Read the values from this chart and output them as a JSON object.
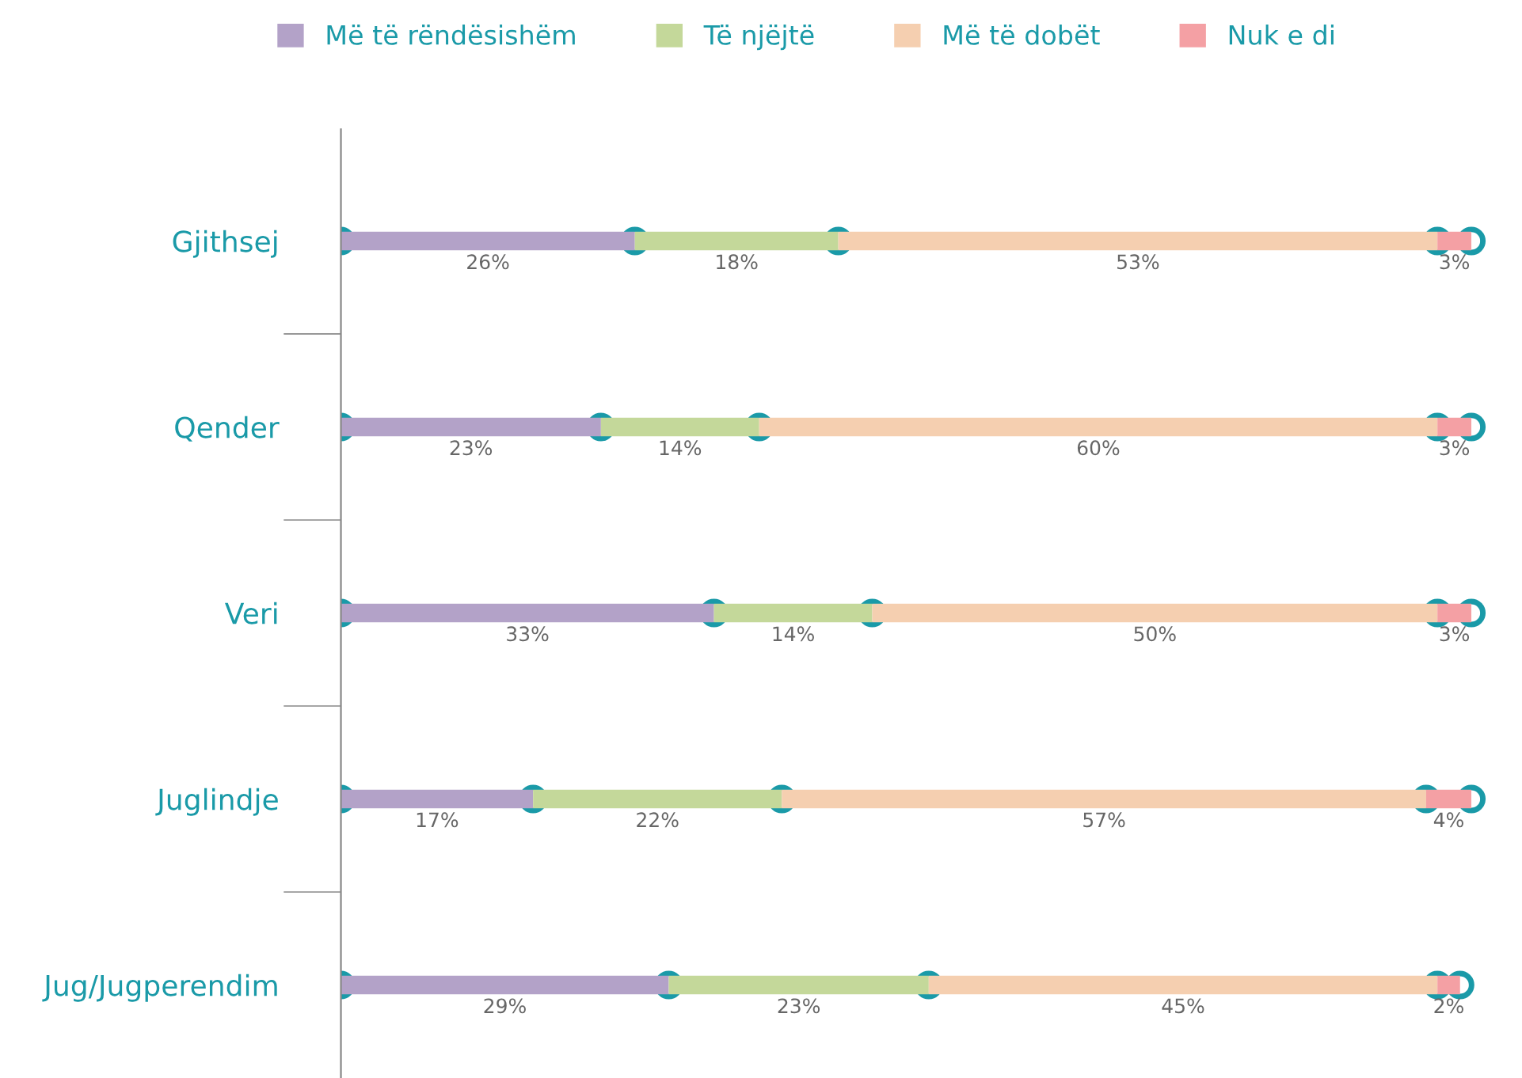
{
  "chart_data": {
    "type": "bar",
    "orientation": "horizontal",
    "stacked": true,
    "legend": "top",
    "grid": false,
    "marker": "circle",
    "categories": [
      "Gjithsej",
      "Qender",
      "Veri",
      "Juglindje",
      "Jug/Jugperendim"
    ],
    "series": [
      {
        "name": "Më të rëndësishëm",
        "color": "#b3a2c8",
        "values": [
          26,
          23,
          33,
          17,
          29
        ],
        "value_labels": [
          "26%",
          "23%",
          "33%",
          "17%",
          "29%"
        ]
      },
      {
        "name": "Të njëjtë",
        "color": "#c4d89a",
        "values": [
          18,
          14,
          14,
          22,
          23
        ],
        "value_labels": [
          "18%",
          "14%",
          "14%",
          "22%",
          "23%"
        ]
      },
      {
        "name": "Më të dobët",
        "color": "#f5cfb0",
        "values": [
          53,
          60,
          50,
          57,
          45
        ],
        "value_labels": [
          "53%",
          "60%",
          "50%",
          "57%",
          "45%"
        ]
      },
      {
        "name": "Nuk e di",
        "color": "#f4a0a4",
        "values": [
          3,
          3,
          3,
          4,
          2
        ],
        "value_labels": [
          "3%",
          "3%",
          "3%",
          "4%",
          "2%"
        ]
      }
    ]
  }
}
